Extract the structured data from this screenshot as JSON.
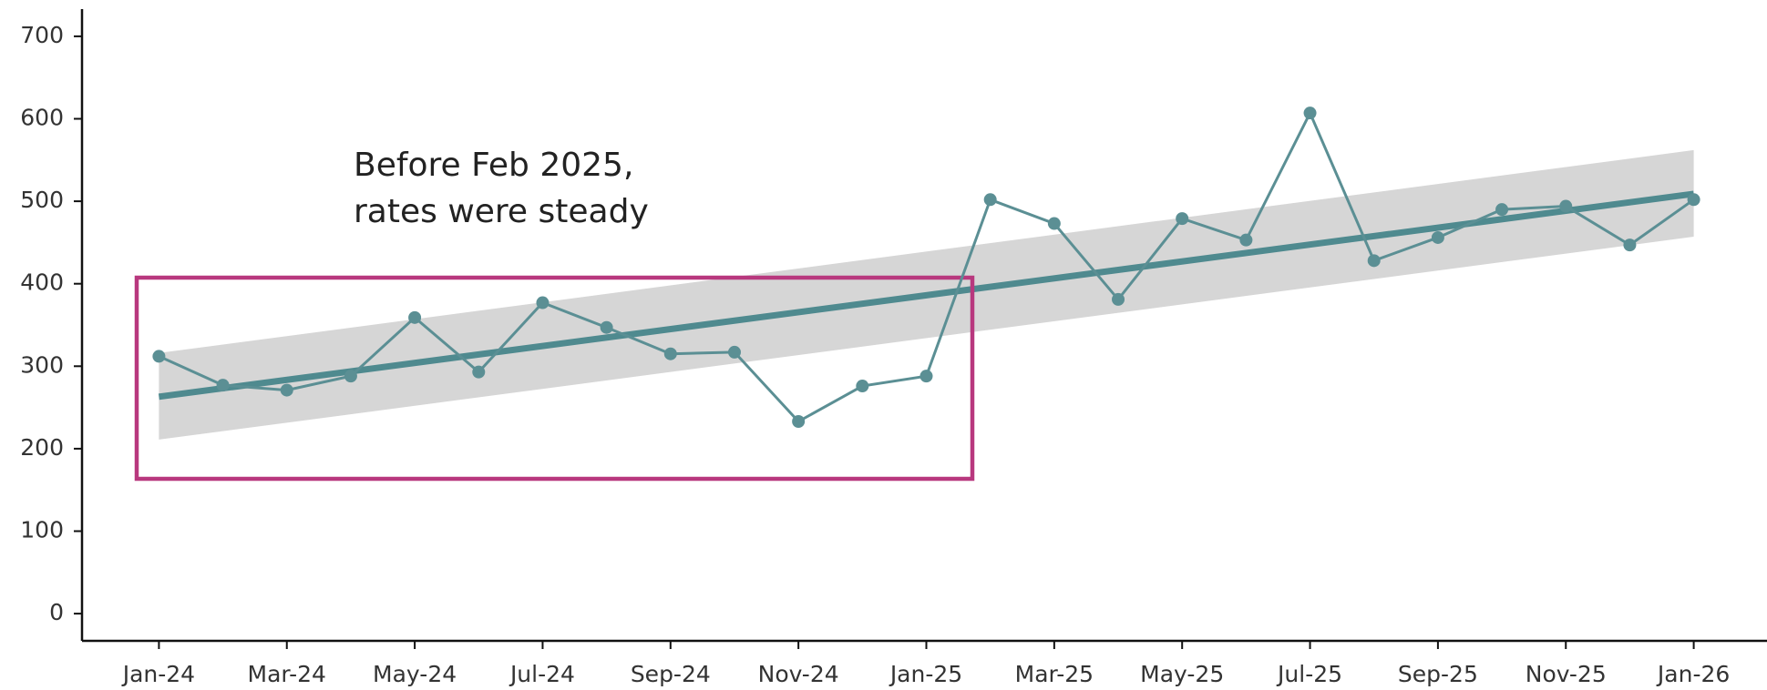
{
  "chart_data": {
    "type": "line",
    "annotation": [
      "Before Feb 2025,",
      "rates were steady"
    ],
    "categories": [
      "Jan-24",
      null,
      "Mar-24",
      null,
      "May-24",
      null,
      "Jul-24",
      null,
      "Sep-24",
      null,
      "Nov-24",
      null,
      "Jan-25",
      null,
      "Mar-25",
      null,
      "May-25",
      null,
      "Jul-25",
      null,
      "Sep-25",
      null,
      "Nov-25",
      null,
      "Jan-26"
    ],
    "series": [
      {
        "color": "#5b8f94",
        "values": [
          312,
          277,
          271,
          288,
          359,
          293,
          377,
          347,
          315,
          317,
          233,
          276,
          288,
          502,
          473,
          381,
          479,
          453,
          607,
          428,
          456,
          490,
          494,
          447,
          502
        ]
      }
    ],
    "trend": {
      "color": "#4f8a8f",
      "values": [
        263,
        509
      ],
      "band_color": "#d6d6d6",
      "band_lower": [
        211,
        457
      ],
      "band_upper": [
        316,
        562
      ]
    },
    "highlight_color": "#b8387e",
    "ylim": [
      -33,
      733
    ],
    "yticks": [
      0,
      100,
      200,
      300,
      400,
      500,
      600,
      700
    ]
  }
}
